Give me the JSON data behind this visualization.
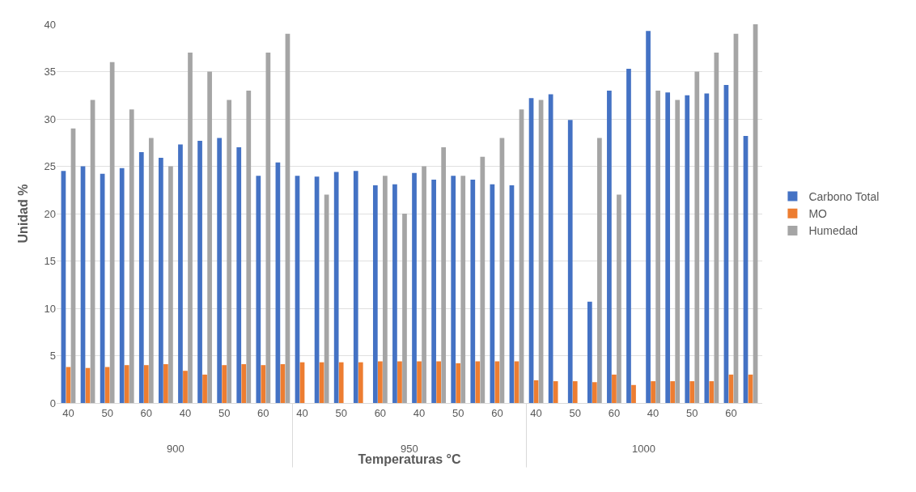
{
  "chart_data": {
    "type": "bar",
    "xlabel": "Temperaturas °C",
    "ylabel": "Unidad %",
    "categories": [
      "40",
      null,
      "50",
      null,
      "60",
      null,
      "40",
      null,
      "50",
      null,
      "60",
      null,
      "40",
      null,
      "50",
      null,
      "60",
      null,
      "40",
      null,
      "50",
      null,
      "60",
      null,
      "40",
      null,
      "50",
      null,
      "60",
      null,
      "40",
      null,
      "50",
      null,
      "60",
      null
    ],
    "series": [
      {
        "name": "Carbono Total",
        "color": "#4472c4",
        "values": [
          24.5,
          25,
          24.2,
          24.8,
          26.5,
          25.9,
          27.3,
          27.7,
          28,
          27,
          24,
          25.4,
          24,
          23.9,
          24.4,
          24.5,
          23,
          23.1,
          24.3,
          23.6,
          24,
          23.6,
          23.1,
          23,
          32.2,
          32.6,
          29.9,
          10.7,
          33,
          35.3,
          39.3,
          32.8,
          32.5,
          32.7,
          33.6,
          28.2
        ]
      },
      {
        "name": "MO",
        "color": "#ed7d31",
        "values": [
          3.8,
          3.7,
          3.8,
          4,
          4,
          4.1,
          3.4,
          3,
          4,
          4.1,
          4,
          4.1,
          4.3,
          4.3,
          4.3,
          4.3,
          4.4,
          4.4,
          4.4,
          4.4,
          4.2,
          4.4,
          4.4,
          4.4,
          2.4,
          2.3,
          2.3,
          2.2,
          3,
          1.9,
          2.3,
          2.3,
          2.3,
          2.3,
          3,
          3
        ]
      },
      {
        "name": "Humedad",
        "color": "#a5a5a5",
        "values": [
          29,
          32,
          36,
          31,
          28,
          25,
          37,
          35,
          32,
          33,
          37,
          39,
          null,
          22,
          null,
          null,
          24,
          20,
          25,
          27,
          24,
          26,
          28,
          31,
          32,
          null,
          null,
          28,
          22,
          null,
          33,
          32,
          35,
          37,
          39,
          40
        ]
      }
    ],
    "annotations": [
      "900",
      "950",
      "1000"
    ],
    "ylim": [
      0,
      40
    ],
    "yticks": [
      0,
      5,
      10,
      15,
      20,
      25,
      30,
      35,
      40
    ],
    "grid": "y",
    "legend": "right"
  }
}
